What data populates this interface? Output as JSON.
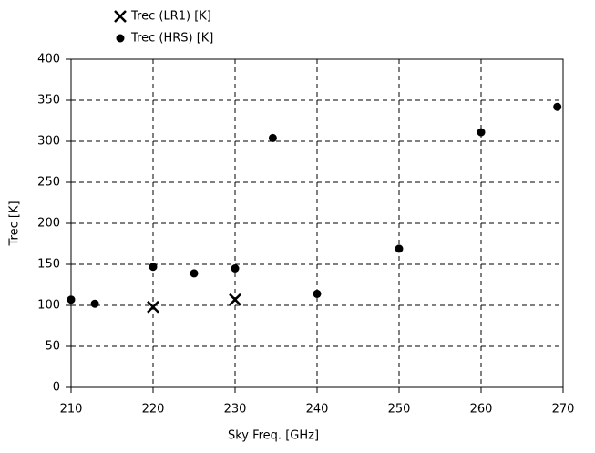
{
  "chart_data": {
    "type": "scatter",
    "xlabel": "Sky Freq. [GHz]",
    "ylabel": "Trec [K]",
    "xlim": [
      210,
      270
    ],
    "ylim": [
      0,
      400
    ],
    "xticks": [
      210,
      220,
      230,
      240,
      250,
      260,
      270
    ],
    "yticks": [
      0,
      50,
      100,
      150,
      200,
      250,
      300,
      350,
      400
    ],
    "grid": true,
    "legend": "top-left",
    "series": [
      {
        "name": "Trec (LR1) [K]",
        "color": "#000000",
        "marker": "x",
        "x": [
          220,
          230
        ],
        "values": [
          98,
          107
        ]
      },
      {
        "name": "Trec (HRS) [K]",
        "color": "#000000",
        "marker": "circle",
        "x": [
          210,
          212.9,
          220,
          225,
          230,
          234.6,
          240,
          250,
          260,
          269.3
        ],
        "values": [
          107,
          102,
          147,
          139,
          145,
          304,
          114,
          169,
          311,
          342
        ]
      }
    ]
  }
}
